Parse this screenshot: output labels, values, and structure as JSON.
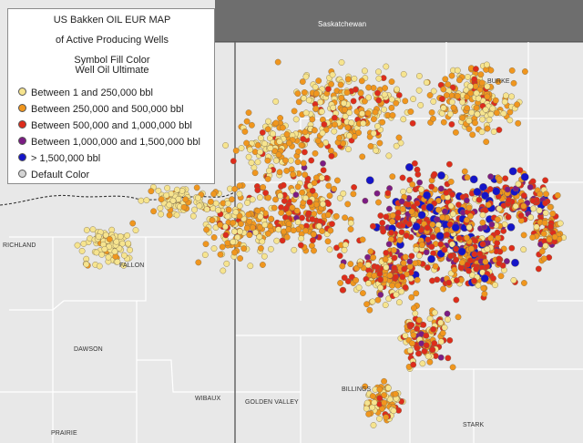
{
  "legend": {
    "title_line_1": "US Bakken OIL EUR MAP",
    "title_line_2": "of Active Producing Wells",
    "subtitle_line_1": "Symbol Fill Color",
    "subtitle_line_2": "Well Oil Ultimate",
    "items": [
      {
        "label": "Between 1 and 250,000 bbl",
        "color": "#f6e48f"
      },
      {
        "label": "Between 250,000 and 500,000 bbl",
        "color": "#f0961e"
      },
      {
        "label": "Between 500,000 and 1,000,000 bbl",
        "color": "#de2c1c"
      },
      {
        "label": "Between 1,000,000 and 1,500,000 bbl",
        "color": "#7b1c84"
      },
      {
        "label": "> 1,500,000 bbl",
        "color": "#1515c8"
      },
      {
        "label": "Default Color",
        "color": "#d4d4d4"
      }
    ]
  },
  "map_labels": {
    "saskatchewan": "Saskatchewan",
    "burke": "BURKE",
    "dawson": "DAWSON",
    "wibaux": "WIBAUX",
    "golden_valley": "GOLDEN VALLEY",
    "billings": "BILLINGS",
    "stark": "STARK",
    "prairie": "PRAIRIE",
    "richland": "RICHLAND",
    "fallon": "FALLON"
  },
  "colors": {
    "map_background": "#e8e8e8",
    "canada_region": "#6e6e6e",
    "county_border": "#ffffff",
    "state_border": "#5a5a5a",
    "legend_border": "#8c8c8c"
  }
}
